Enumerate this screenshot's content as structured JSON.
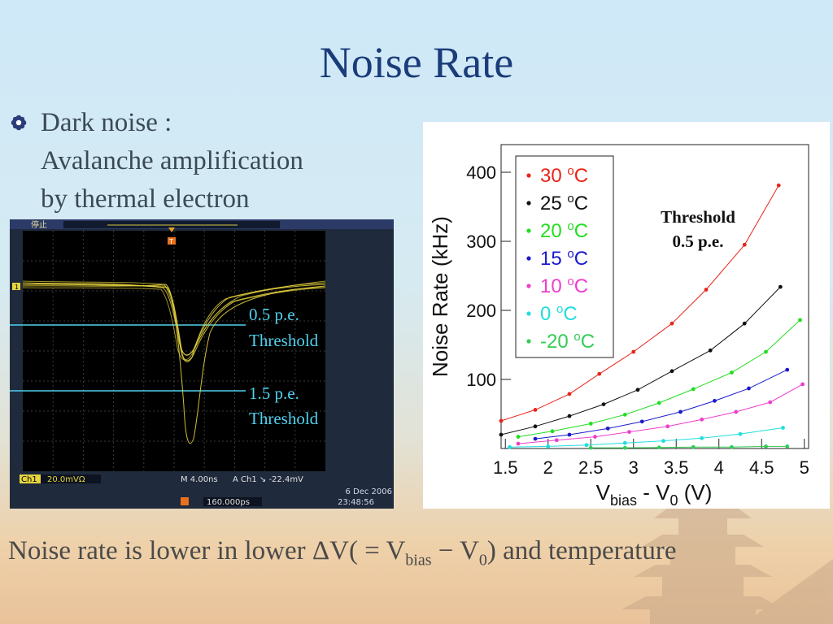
{
  "slide": {
    "title": "Noise Rate",
    "bullet_lines": [
      "Dark noise :",
      "Avalanche amplification",
      "by thermal electron"
    ],
    "conclusion": {
      "prefix": "Noise rate is lower in lower ΔV( = V",
      "sub1": "bias",
      "mid": " − V",
      "sub2": "0",
      "suffix": ") and temperature"
    }
  },
  "oscilloscope": {
    "status": "停止",
    "channel": "Ch1",
    "scale": "20.0mVΩ",
    "timebase": "M 4.00ns",
    "trigger": "A  Ch1 ↘ -22.4mV",
    "position": "160.000ps",
    "date": "6 Dec 2006",
    "time": "23:48:56",
    "threshold_labels": [
      [
        "0.5 p.e.",
        "Threshold"
      ],
      [
        "1.5 p.e.",
        "Threshold"
      ]
    ]
  },
  "chart_data": {
    "type": "scatter",
    "title": "",
    "xlabel_parts": [
      "V",
      "bias",
      " - V",
      "0",
      " (V)"
    ],
    "ylabel": "Noise Rate (kHz)",
    "xlim": [
      1.45,
      5.05
    ],
    "ylim": [
      0,
      440
    ],
    "x_ticks": [
      "1.5",
      "2",
      "2.5",
      "3",
      "3.5",
      "4",
      "4.5",
      "5"
    ],
    "y_ticks": [
      "100",
      "200",
      "300",
      "400"
    ],
    "annotation": [
      "Threshold",
      "0.5 p.e."
    ],
    "legend_position": "top-left",
    "series": [
      {
        "name": "30 °C",
        "label": "30",
        "color": "#e8251a",
        "x": [
          1.45,
          1.85,
          2.25,
          2.6,
          3.0,
          3.45,
          3.85,
          4.3,
          4.7
        ],
        "y": [
          40,
          56,
          79,
          108,
          140,
          181,
          230,
          295,
          381
        ]
      },
      {
        "name": "25 °C",
        "label": "25",
        "color": "#111111",
        "x": [
          1.45,
          1.85,
          2.25,
          2.65,
          3.05,
          3.45,
          3.9,
          4.3,
          4.72
        ],
        "y": [
          20,
          32,
          47,
          64,
          85,
          112,
          142,
          181,
          234
        ]
      },
      {
        "name": "20 °C",
        "label": "20",
        "color": "#22dd22",
        "x": [
          1.65,
          2.05,
          2.5,
          2.9,
          3.3,
          3.7,
          4.15,
          4.55,
          4.95
        ],
        "y": [
          17,
          25,
          36,
          49,
          66,
          86,
          110,
          140,
          186
        ]
      },
      {
        "name": "15 °C",
        "label": "15",
        "color": "#1a1acc",
        "x": [
          1.85,
          2.25,
          2.7,
          3.1,
          3.55,
          3.95,
          4.35,
          4.8
        ],
        "y": [
          14,
          20,
          29,
          39,
          53,
          69,
          87,
          114
        ]
      },
      {
        "name": "10 °C",
        "label": "10",
        "color": "#ee3ecc",
        "x": [
          1.65,
          2.1,
          2.55,
          2.95,
          3.4,
          3.8,
          4.2,
          4.6,
          4.98
        ],
        "y": [
          7,
          12,
          17,
          24,
          32,
          42,
          53,
          67,
          93
        ]
      },
      {
        "name": "0 °C",
        "label": "0",
        "color": "#22dddd",
        "x": [
          1.55,
          2.0,
          2.45,
          2.9,
          3.35,
          3.8,
          4.25,
          4.75
        ],
        "y": [
          2,
          3,
          5,
          8,
          11,
          15,
          21,
          30
        ]
      },
      {
        "name": "-20 °C",
        "label": "-20",
        "color": "#33cc55",
        "x": [
          2.5,
          2.9,
          3.3,
          3.7,
          4.15,
          4.55,
          4.8
        ],
        "y": [
          1,
          1,
          1.5,
          2,
          2,
          3,
          3
        ]
      }
    ]
  }
}
